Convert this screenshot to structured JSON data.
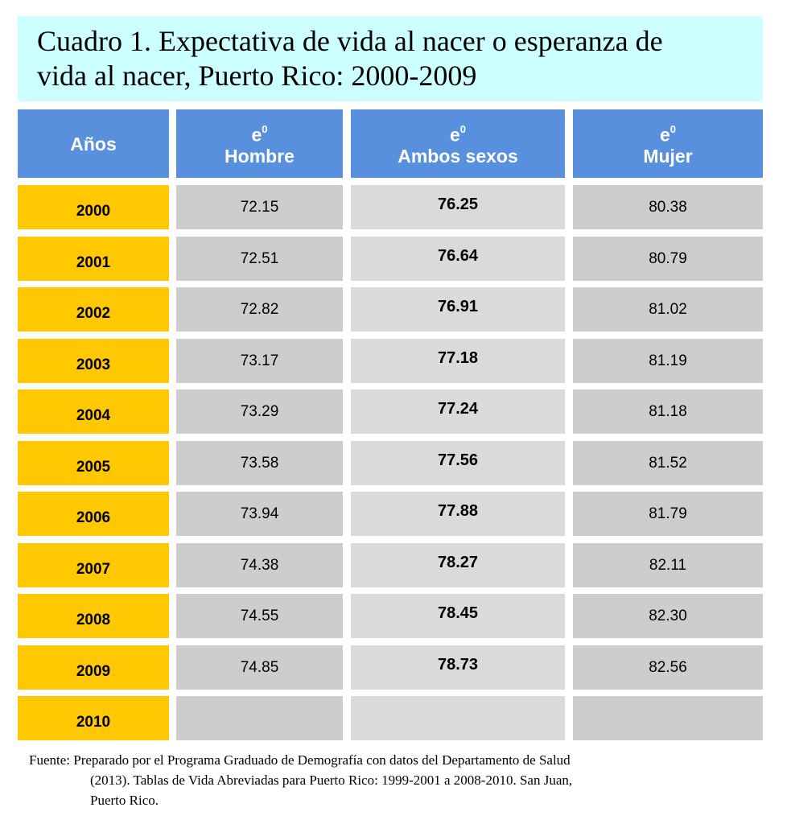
{
  "title": {
    "line1": "Cuadro 1. Expectativa de vida al nacer o esperanza de",
    "line2": "vida al nacer, Puerto Rico: 2000-2009"
  },
  "table": {
    "headers": {
      "years": "Años",
      "e_symbol": "e",
      "e_super": "0",
      "male": "Hombre",
      "both": "Ambos sexos",
      "female": "Mujer"
    },
    "rows": [
      {
        "year": "2000",
        "male": "72.15",
        "both": "76.25",
        "female": "80.38"
      },
      {
        "year": "2001",
        "male": "72.51",
        "both": "76.64",
        "female": "80.79"
      },
      {
        "year": "2002",
        "male": "72.82",
        "both": "76.91",
        "female": "81.02"
      },
      {
        "year": "2003",
        "male": "73.17",
        "both": "77.18",
        "female": "81.19"
      },
      {
        "year": "2004",
        "male": "73.29",
        "both": "77.24",
        "female": "81.18"
      },
      {
        "year": "2005",
        "male": "73.58",
        "both": "77.56",
        "female": "81.52"
      },
      {
        "year": "2006",
        "male": "73.94",
        "both": "77.88",
        "female": "81.79"
      },
      {
        "year": "2007",
        "male": "74.38",
        "both": "78.27",
        "female": "82.11"
      },
      {
        "year": "2008",
        "male": "74.55",
        "both": "78.45",
        "female": "82.30"
      },
      {
        "year": "2009",
        "male": "74.85",
        "both": "78.73",
        "female": "82.56"
      },
      {
        "year": "2010",
        "male": "",
        "both": "",
        "female": ""
      }
    ]
  },
  "source": {
    "line1": "Fuente: Preparado por el Programa Graduado de Demografía con datos del Departamento de Salud",
    "line2": "(2013). Tablas de Vida Abreviadas para Puerto Rico: 1999-2001 a  2008-2010. San Juan,",
    "line3": "Puerto Rico."
  },
  "colors": {
    "title_background": "#ccffff",
    "header_background": "#5890dd",
    "year_background": "#ffc800",
    "value_background": "#cdcdcd"
  }
}
